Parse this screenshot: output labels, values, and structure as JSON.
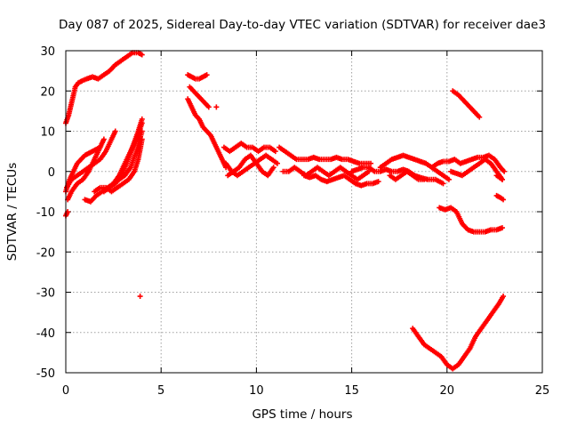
{
  "chart_data": {
    "type": "scatter",
    "title": "Day 087 of 2025, Sidereal Day-to-day VTEC variation (SDTVAR) for receiver dae3",
    "xlabel": "GPS time / hours",
    "ylabel": "SDTVAR / TECUs",
    "xlim": [
      0,
      25
    ],
    "ylim": [
      -50,
      30
    ],
    "xticks": [
      "0",
      "5",
      "10",
      "15",
      "20",
      "25"
    ],
    "yticks": [
      "30",
      "20",
      "10",
      "0",
      "-10",
      "-20",
      "-30",
      "-40",
      "-50"
    ],
    "grid": true,
    "marker": "plus",
    "color": "#ff0000",
    "series": [
      {
        "x": [
          0.0,
          0.15,
          0.3,
          0.5,
          0.65,
          0.85,
          1.1,
          1.4,
          1.7,
          2.0,
          2.3,
          2.6,
          2.9,
          3.2,
          3.5,
          3.8,
          4.0
        ],
        "y": [
          12,
          14,
          17,
          21,
          22,
          22.5,
          23,
          23.5,
          23,
          24,
          25,
          26.5,
          27.5,
          28.5,
          29.5,
          29.5,
          29
        ]
      },
      {
        "x": [
          0.0,
          0.2,
          0.4,
          0.6,
          0.8,
          1.0,
          1.2,
          1.4,
          1.6,
          1.8
        ],
        "y": [
          -5,
          -2,
          0,
          2,
          3,
          4,
          4.5,
          5,
          5.5,
          6
        ]
      },
      {
        "x": [
          0.05,
          0.3,
          0.6,
          0.9,
          1.2,
          1.5,
          1.8,
          2.1,
          2.4,
          2.6
        ],
        "y": [
          -4,
          -2,
          -1,
          0,
          1,
          2,
          3,
          5,
          8,
          10
        ]
      },
      {
        "x": [
          0.1,
          0.3,
          0.6,
          0.9,
          1.2,
          1.5,
          1.8,
          2.0
        ],
        "y": [
          -7,
          -5,
          -3,
          -2,
          0,
          3,
          6,
          8
        ]
      },
      {
        "x": [
          0.0,
          0.1
        ],
        "y": [
          -11,
          -10
        ]
      },
      {
        "x": [
          1.0,
          1.3,
          1.6,
          1.9,
          2.2,
          2.5,
          2.8,
          3.1,
          3.4,
          3.7,
          4.0
        ],
        "y": [
          -7,
          -7.5,
          -6,
          -5,
          -4,
          -3,
          -2,
          -1,
          1,
          5,
          10
        ]
      },
      {
        "x": [
          1.5,
          1.8,
          2.1,
          2.4,
          2.7,
          3.0,
          3.3,
          3.6,
          3.8,
          4.0
        ],
        "y": [
          -5,
          -4,
          -4,
          -5,
          -4,
          -3,
          -2,
          0,
          3,
          8
        ]
      },
      {
        "x": [
          2.0,
          2.3,
          2.6,
          2.9,
          3.2,
          3.5,
          3.8,
          4.0
        ],
        "y": [
          -5,
          -4,
          -3,
          -1,
          2,
          6,
          10,
          13
        ]
      },
      {
        "x": [
          2.5,
          2.8,
          3.1,
          3.4,
          3.7,
          4.0
        ],
        "y": [
          -3,
          -1,
          2,
          5,
          8,
          12
        ]
      },
      {
        "x": [
          3.9
        ],
        "y": [
          -31
        ]
      },
      {
        "x": [
          6.4,
          6.6,
          6.8,
          7.0,
          7.2,
          7.4
        ],
        "y": [
          24,
          23.5,
          23,
          23,
          23.5,
          24
        ]
      },
      {
        "x": [
          6.5,
          6.7,
          6.9,
          7.1,
          7.3,
          7.5
        ],
        "y": [
          21,
          20,
          19,
          18,
          17,
          16
        ]
      },
      {
        "x": [
          6.4,
          6.6,
          6.8,
          7.0,
          7.2,
          7.4,
          7.6,
          7.8,
          8.0,
          8.2,
          8.4
        ],
        "y": [
          18,
          16,
          14,
          13,
          11,
          10,
          9,
          7,
          5,
          3,
          1
        ]
      },
      {
        "x": [
          7.9
        ],
        "y": [
          16
        ]
      },
      {
        "x": [
          8.3,
          8.6,
          8.9,
          9.2,
          9.5,
          9.8,
          10.1,
          10.4,
          10.7,
          11.0
        ],
        "y": [
          6,
          5,
          6,
          7,
          6,
          6,
          5,
          6,
          6,
          5
        ]
      },
      {
        "x": [
          8.4,
          8.7,
          9.0,
          9.3,
          9.6,
          9.9,
          10.2,
          10.5,
          10.8,
          11.1
        ],
        "y": [
          2,
          0,
          -1,
          0,
          1,
          2,
          3,
          4,
          3,
          2
        ]
      },
      {
        "x": [
          8.5,
          8.8,
          9.1,
          9.4,
          9.7,
          10.0,
          10.3,
          10.6,
          10.9
        ],
        "y": [
          -1,
          0,
          1,
          3,
          4,
          2,
          0,
          -1,
          1
        ]
      },
      {
        "x": [
          11.2,
          11.5,
          11.8,
          12.1,
          12.4,
          12.7,
          13.0,
          13.3,
          13.6,
          13.9,
          14.2,
          14.5,
          14.8,
          15.1,
          15.4,
          15.7,
          16.0
        ],
        "y": [
          6,
          5,
          4,
          3,
          3,
          3,
          3.5,
          3,
          3,
          3,
          3.5,
          3,
          3,
          2.5,
          2,
          2,
          2
        ]
      },
      {
        "x": [
          11.4,
          11.7,
          12.0,
          12.3,
          12.6,
          12.9,
          13.2,
          13.5,
          13.8,
          14.1,
          14.4,
          14.7,
          15.0,
          15.3,
          15.6,
          15.9
        ],
        "y": [
          0,
          0,
          1,
          0,
          -1,
          0,
          1,
          0,
          -1,
          0,
          1,
          0,
          -1,
          -2,
          -1,
          0
        ]
      },
      {
        "x": [
          12.5,
          12.8,
          13.1,
          13.4,
          13.7,
          14.0,
          14.3,
          14.6,
          14.9,
          15.2,
          15.5,
          15.8,
          16.1,
          16.4
        ],
        "y": [
          -1,
          -1.5,
          -1,
          -2,
          -2.5,
          -2,
          -1.5,
          -1,
          -2,
          -3,
          -3.5,
          -3,
          -3,
          -2.5
        ]
      },
      {
        "x": [
          15.0,
          15.3,
          15.6,
          15.9,
          16.2,
          16.5,
          16.8,
          17.1,
          17.4,
          17.7,
          18.0,
          18.3,
          18.6,
          19.0,
          19.4,
          19.8
        ],
        "y": [
          0,
          0.5,
          1,
          1,
          0,
          0,
          0.5,
          0,
          0,
          0.5,
          0,
          -1,
          -1.5,
          -2,
          -2,
          -3
        ]
      },
      {
        "x": [
          16.5,
          16.8,
          17.1,
          17.4,
          17.7,
          18.0,
          18.3,
          18.6,
          18.9,
          19.2,
          19.5,
          19.8,
          20.1
        ],
        "y": [
          1,
          2,
          3,
          3.5,
          4,
          3.5,
          3,
          2.5,
          2,
          1,
          0,
          -1,
          -2
        ]
      },
      {
        "x": [
          17.0,
          17.3,
          17.6,
          17.9,
          18.2,
          18.5,
          18.8
        ],
        "y": [
          -1,
          -2,
          -1,
          0,
          -1,
          -2,
          -2
        ]
      },
      {
        "x": [
          19.2,
          19.5,
          19.8,
          20.1,
          20.4,
          20.7,
          21.0,
          21.3,
          21.6,
          21.9,
          22.2,
          22.5,
          22.8,
          23.0
        ],
        "y": [
          1,
          2,
          2.5,
          2.5,
          3,
          2,
          2.5,
          3,
          3.5,
          3.5,
          4,
          3,
          1,
          0
        ]
      },
      {
        "x": [
          20.2,
          20.5,
          20.8,
          21.1,
          21.4,
          21.7,
          22.0,
          22.3,
          22.6,
          22.9
        ],
        "y": [
          0,
          -0.5,
          -1,
          0,
          1,
          2,
          3,
          2,
          0,
          -2
        ]
      },
      {
        "x": [
          22.6,
          22.9
        ],
        "y": [
          -1,
          -2
        ]
      },
      {
        "x": [
          22.6,
          22.8,
          22.95
        ],
        "y": [
          -6,
          -6.5,
          -7
        ]
      },
      {
        "x": [
          19.6,
          19.9,
          20.2,
          20.5,
          20.8,
          21.1,
          21.4,
          21.7,
          22.0,
          22.3,
          22.6,
          22.9
        ],
        "y": [
          -9,
          -9.5,
          -9,
          -10,
          -13,
          -14.5,
          -15,
          -15,
          -15,
          -14.5,
          -14.5,
          -14
        ]
      },
      {
        "x": [
          20.3,
          20.6,
          20.9,
          21.2,
          21.5,
          21.7
        ],
        "y": [
          20,
          19,
          17.5,
          16,
          14.5,
          13.5
        ]
      },
      {
        "x": [
          18.2,
          18.5,
          18.8,
          19.1,
          19.4,
          19.7,
          20.0,
          20.3,
          20.6,
          20.9,
          21.2,
          21.5,
          21.8,
          22.1,
          22.4,
          22.7,
          22.95
        ],
        "y": [
          -39,
          -41,
          -43,
          -44,
          -45,
          -46,
          -48,
          -49,
          -48,
          -46,
          -44,
          -41,
          -39,
          -37,
          -35,
          -33,
          -31
        ]
      }
    ]
  }
}
